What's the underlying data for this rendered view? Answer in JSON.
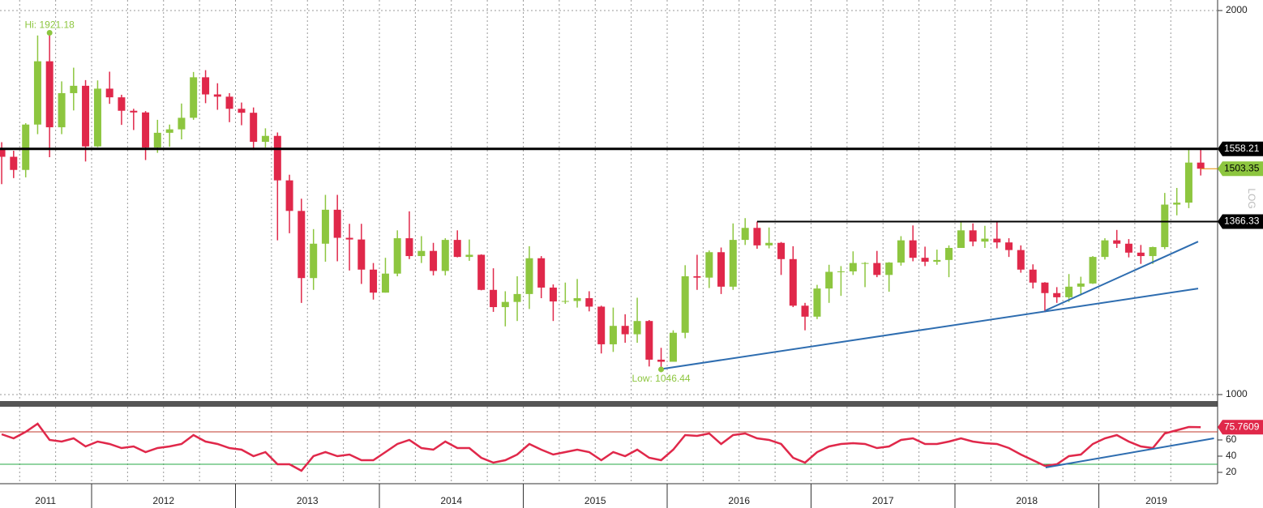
{
  "chart_data": [
    {
      "type": "candlestick",
      "log_scale": true,
      "up_color": "#8dc63f",
      "down_color": "#e0284a",
      "x": [
        2011.375,
        2011.458,
        2011.542,
        2011.625,
        2011.708,
        2011.792,
        2011.875,
        2011.958,
        2012.042,
        2012.125,
        2012.208,
        2012.292,
        2012.375,
        2012.458,
        2012.542,
        2012.625,
        2012.708,
        2012.792,
        2012.875,
        2012.958,
        2013.042,
        2013.125,
        2013.208,
        2013.292,
        2013.375,
        2013.458,
        2013.542,
        2013.625,
        2013.708,
        2013.792,
        2013.875,
        2013.958,
        2014.042,
        2014.125,
        2014.208,
        2014.292,
        2014.375,
        2014.458,
        2014.542,
        2014.625,
        2014.708,
        2014.792,
        2014.875,
        2014.958,
        2015.042,
        2015.125,
        2015.208,
        2015.292,
        2015.375,
        2015.458,
        2015.542,
        2015.625,
        2015.708,
        2015.792,
        2015.875,
        2015.958,
        2016.042,
        2016.125,
        2016.208,
        2016.292,
        2016.375,
        2016.458,
        2016.542,
        2016.625,
        2016.708,
        2016.792,
        2016.875,
        2016.958,
        2017.042,
        2017.125,
        2017.208,
        2017.292,
        2017.375,
        2017.458,
        2017.542,
        2017.625,
        2017.708,
        2017.792,
        2017.875,
        2017.958,
        2018.042,
        2018.125,
        2018.208,
        2018.292,
        2018.375,
        2018.458,
        2018.542,
        2018.625,
        2018.708,
        2018.792,
        2018.875,
        2018.958,
        2019.042,
        2019.125,
        2019.208,
        2019.292,
        2019.375,
        2019.458,
        2019.542,
        2019.625,
        2019.708
      ],
      "open": [
        1556,
        1536,
        1500,
        1628,
        1825,
        1620,
        1723,
        1746,
        1565,
        1737,
        1710,
        1669,
        1664,
        1562,
        1604,
        1614,
        1648,
        1773,
        1719,
        1712,
        1675,
        1663,
        1578,
        1595,
        1472,
        1393,
        1234,
        1313,
        1396,
        1327,
        1323,
        1253,
        1202,
        1244,
        1326,
        1284,
        1296,
        1250,
        1322,
        1282,
        1287,
        1208,
        1171,
        1182,
        1199,
        1279,
        1213,
        1183,
        1184,
        1190,
        1172,
        1095,
        1132,
        1115,
        1142,
        1065,
        1061,
        1118,
        1238,
        1235,
        1293,
        1215,
        1322,
        1351,
        1309,
        1315,
        1277,
        1174,
        1151,
        1211,
        1248,
        1249,
        1268,
        1268,
        1241,
        1269,
        1321,
        1280,
        1271,
        1275,
        1303,
        1345,
        1318,
        1325,
        1316,
        1298,
        1253,
        1224,
        1201,
        1192,
        1215,
        1222,
        1282,
        1321,
        1313,
        1292,
        1284,
        1305,
        1409,
        1414,
        1520
      ],
      "high": [
        1577,
        1553,
        1632,
        1912,
        1921.18,
        1760,
        1804,
        1764,
        1763,
        1791,
        1718,
        1675,
        1668,
        1642,
        1628,
        1691,
        1790,
        1796,
        1754,
        1723,
        1694,
        1679,
        1617,
        1605,
        1487,
        1424,
        1348,
        1434,
        1434,
        1361,
        1361,
        1268,
        1280,
        1345,
        1392,
        1331,
        1315,
        1326,
        1345,
        1323,
        1288,
        1256,
        1205,
        1238,
        1307,
        1284,
        1220,
        1224,
        1232,
        1205,
        1174,
        1170,
        1156,
        1191,
        1144,
        1088,
        1123,
        1263,
        1287,
        1297,
        1304,
        1362,
        1375,
        1366.33,
        1352,
        1317,
        1307,
        1180,
        1219,
        1264,
        1261,
        1295,
        1270,
        1296,
        1270,
        1331,
        1357,
        1306,
        1299,
        1309,
        1366,
        1362,
        1356,
        1365,
        1326,
        1309,
        1265,
        1225,
        1214,
        1243,
        1237,
        1284,
        1326,
        1346,
        1324,
        1310,
        1306,
        1439,
        1452,
        1555,
        1558.21
      ],
      "low": [
        1462,
        1478,
        1480,
        1600,
        1535,
        1600,
        1670,
        1523,
        1563,
        1690,
        1627,
        1612,
        1527,
        1547,
        1564,
        1585,
        1642,
        1692,
        1672,
        1635,
        1626,
        1555,
        1562,
        1321,
        1338,
        1180,
        1208,
        1271,
        1272,
        1251,
        1221,
        1187,
        1202,
        1238,
        1277,
        1268,
        1240,
        1240,
        1281,
        1273,
        1207,
        1161,
        1131,
        1142,
        1167,
        1190,
        1142,
        1178,
        1170,
        1162,
        1077,
        1080,
        1098,
        1098,
        1052,
        1046.44,
        1061,
        1107,
        1208,
        1212,
        1199,
        1208,
        1310,
        1301,
        1302,
        1241,
        1171,
        1123,
        1146,
        1180,
        1195,
        1241,
        1214,
        1236,
        1204,
        1262,
        1272,
        1261,
        1264,
        1236,
        1303,
        1307,
        1303,
        1302,
        1282,
        1246,
        1211,
        1160,
        1180,
        1182,
        1196,
        1221,
        1276,
        1303,
        1281,
        1266,
        1266,
        1300,
        1382,
        1400,
        1485
      ],
      "close": [
        1536,
        1500,
        1628,
        1825,
        1620,
        1723,
        1746,
        1565,
        1737,
        1710,
        1669,
        1664,
        1562,
        1604,
        1614,
        1648,
        1773,
        1719,
        1712,
        1675,
        1663,
        1578,
        1595,
        1472,
        1393,
        1234,
        1313,
        1396,
        1327,
        1323,
        1253,
        1202,
        1244,
        1326,
        1284,
        1296,
        1250,
        1322,
        1282,
        1287,
        1208,
        1171,
        1182,
        1199,
        1279,
        1213,
        1183,
        1184,
        1190,
        1172,
        1095,
        1132,
        1115,
        1142,
        1065,
        1061,
        1118,
        1238,
        1235,
        1293,
        1215,
        1322,
        1351,
        1309,
        1315,
        1277,
        1174,
        1151,
        1211,
        1248,
        1249,
        1268,
        1268,
        1241,
        1269,
        1321,
        1280,
        1271,
        1275,
        1303,
        1345,
        1318,
        1325,
        1316,
        1298,
        1253,
        1224,
        1201,
        1192,
        1215,
        1222,
        1282,
        1321,
        1313,
        1292,
        1284,
        1305,
        1409,
        1414,
        1520,
        1503.35
      ],
      "ylim": [
        1000,
        2000
      ],
      "yticks": [
        1000,
        2000
      ],
      "scale_label": "LOG",
      "xticks": [
        {
          "value": 2011.68,
          "label": "2011"
        },
        {
          "value": 2012.5,
          "label": "2012"
        },
        {
          "value": 2013.5,
          "label": "2013"
        },
        {
          "value": 2014.5,
          "label": "2014"
        },
        {
          "value": 2015.5,
          "label": "2015"
        },
        {
          "value": 2016.5,
          "label": "2016"
        },
        {
          "value": 2017.5,
          "label": "2017"
        },
        {
          "value": 2018.5,
          "label": "2018"
        },
        {
          "value": 2019.4,
          "label": "2019"
        }
      ],
      "xgrid": [
        2011.5,
        2011.75,
        2012,
        2012.25,
        2012.5,
        2012.75,
        2013,
        2013.25,
        2013.5,
        2013.75,
        2014,
        2014.25,
        2014.5,
        2014.75,
        2015,
        2015.25,
        2015.5,
        2015.75,
        2016,
        2016.25,
        2016.5,
        2016.75,
        2017,
        2017.25,
        2017.5,
        2017.75,
        2018,
        2018.25,
        2018.5,
        2018.75,
        2019,
        2019.25,
        2019.5
      ],
      "levels": [
        {
          "value": 1558.21,
          "color": "#000000"
        },
        {
          "value": 1366.33,
          "from": 2016.625,
          "color": "#000000"
        }
      ],
      "trendlines": [
        {
          "x": [
            2015.94,
            2019.69
          ],
          "y": [
            1046.44,
            1211
          ],
          "color": "#2e6db0"
        },
        {
          "x": [
            2018.63,
            2019.69
          ],
          "y": [
            1164,
            1318
          ],
          "color": "#2e6db0"
        }
      ],
      "annotations": [
        {
          "text": "Hi: 1921.18",
          "x": 2011.708,
          "y": 1921.18
        },
        {
          "text": "Low: 1046.44",
          "x": 2015.958,
          "y": 1046.44
        }
      ],
      "last_color": "#8dc63f"
    },
    {
      "type": "line",
      "color": "#e0284a",
      "values": [
        67,
        62,
        70,
        80,
        60,
        58,
        62,
        52,
        58,
        55,
        50,
        52,
        45,
        50,
        52,
        55,
        66,
        58,
        55,
        50,
        48,
        40,
        45,
        30,
        30,
        22,
        40,
        45,
        40,
        42,
        35,
        35,
        45,
        55,
        60,
        50,
        48,
        58,
        50,
        50,
        38,
        32,
        35,
        42,
        55,
        48,
        42,
        45,
        48,
        45,
        35,
        45,
        40,
        48,
        38,
        35,
        48,
        66,
        65,
        68,
        55,
        66,
        68,
        62,
        60,
        55,
        38,
        32,
        45,
        52,
        55,
        56,
        55,
        50,
        52,
        60,
        62,
        55,
        55,
        58,
        62,
        58,
        56,
        55,
        50,
        42,
        35,
        28,
        30,
        40,
        42,
        55,
        62,
        66,
        58,
        52,
        50,
        68,
        72,
        76,
        75.7609
      ],
      "ylim": [
        10,
        98
      ],
      "yticks": [
        20,
        40,
        60
      ],
      "levels": [
        {
          "value": 70,
          "color": "#c0392b"
        },
        {
          "value": 30,
          "color": "#27a844"
        }
      ],
      "trendlines": [
        {
          "x": [
            2018.63,
            2019.8
          ],
          "y": [
            26,
            62
          ],
          "color": "#2e6db0"
        }
      ]
    }
  ]
}
